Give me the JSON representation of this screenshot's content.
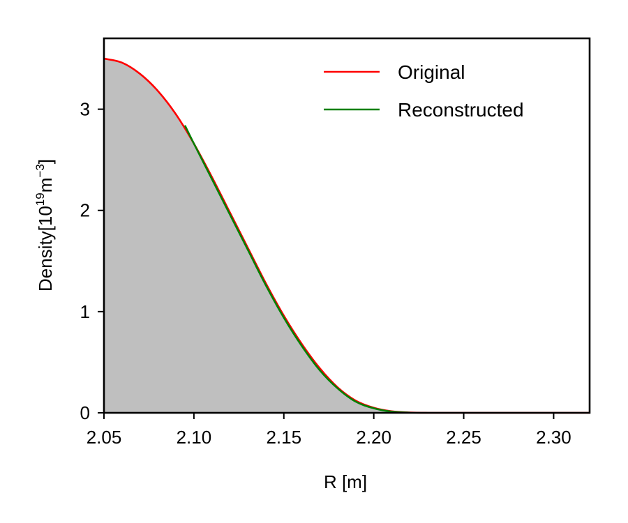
{
  "chart_data": {
    "type": "area",
    "xlabel": "R [m]",
    "ylabel": {
      "main": "Density[10",
      "exp1": "19",
      "mid": "m",
      "exp2": "−3",
      "end": "]"
    },
    "xlim": [
      2.05,
      2.32
    ],
    "ylim": [
      0,
      3.7
    ],
    "xticks": [
      2.05,
      2.1,
      2.15,
      2.2,
      2.25,
      2.3
    ],
    "xtick_labels": [
      "2.05",
      "2.10",
      "2.15",
      "2.20",
      "2.25",
      "2.30"
    ],
    "yticks": [
      0,
      1,
      2,
      3
    ],
    "ytick_labels": [
      "0",
      "1",
      "2",
      "3"
    ],
    "legend_position": "top-right",
    "fill_color": "#bfbfbf",
    "series": [
      {
        "name": "Original",
        "color": "#ff0000",
        "x": [
          2.05,
          2.06,
          2.07,
          2.08,
          2.09,
          2.1,
          2.11,
          2.12,
          2.13,
          2.14,
          2.15,
          2.16,
          2.17,
          2.18,
          2.19,
          2.2,
          2.21,
          2.22,
          2.23,
          2.25,
          2.28,
          2.32
        ],
        "values": [
          3.5,
          3.46,
          3.35,
          3.18,
          2.95,
          2.66,
          2.33,
          1.98,
          1.63,
          1.28,
          0.96,
          0.68,
          0.44,
          0.25,
          0.12,
          0.05,
          0.015,
          0.003,
          0.0,
          0.0,
          0.0,
          0.0
        ]
      },
      {
        "name": "Reconstructed",
        "color": "#008000",
        "x": [
          2.095,
          2.1,
          2.11,
          2.12,
          2.13,
          2.14,
          2.15,
          2.16,
          2.17,
          2.18,
          2.19,
          2.2,
          2.21,
          2.22
        ],
        "values": [
          2.84,
          2.66,
          2.31,
          1.96,
          1.61,
          1.26,
          0.94,
          0.66,
          0.42,
          0.24,
          0.11,
          0.045,
          0.012,
          0.002
        ]
      }
    ]
  }
}
